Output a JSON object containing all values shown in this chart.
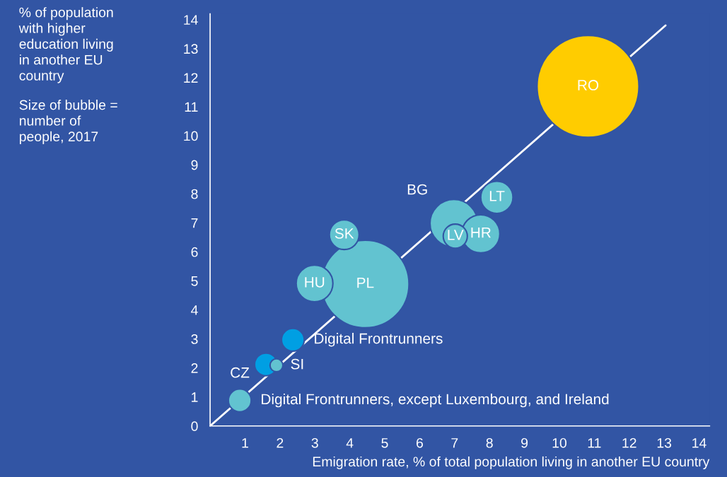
{
  "chart_data": {
    "type": "bubble",
    "xlabel": "Emigration rate, % of total population living in another EU country",
    "xlim": [
      0,
      14.3
    ],
    "ylim": [
      0,
      14.2
    ],
    "xticks": [
      1,
      2,
      3,
      4,
      5,
      6,
      7,
      8,
      9,
      10,
      11,
      12,
      13,
      14
    ],
    "yticks": [
      0,
      1,
      2,
      3,
      4,
      5,
      6,
      7,
      8,
      9,
      10,
      11,
      12,
      13,
      14
    ],
    "grid": false,
    "legend": false,
    "series": [
      {
        "type": "line",
        "color": "#ffffff",
        "x": [
          0,
          13.04
        ],
        "values": [
          0,
          13.8
        ]
      },
      {
        "x": [
          10.82,
          4.44,
          2.99,
          3.84,
          6.98,
          7.75,
          7.02,
          8.21,
          2.37,
          1.6,
          1.9,
          0.85
        ],
        "values": [
          11.7,
          4.89,
          4.91,
          6.59,
          6.98,
          6.62,
          6.54,
          7.88,
          2.97,
          2.12,
          2.09,
          0.88
        ],
        "sizes": [
          1,
          0.74,
          0.13,
          0.085,
          0.22,
          0.14,
          0.056,
          0.1,
          0.05,
          0.05,
          0.016,
          0.05
        ],
        "colors": [
          "#ffcc00",
          "#62c3d0",
          "#62c3d0",
          "#62c3d0",
          "#62c3d0",
          "#62c3d0",
          "#62c3d0",
          "#62c3d0",
          "#009fe3",
          "#009fe3",
          "#62c3d0",
          "#62c3d0"
        ]
      }
    ],
    "annotations": [
      "% of population\nwith higher\neducation living\nin another EU\ncountry",
      "Size of bubble =\nnumber of\npeople, 2017",
      {
        "text": "RO",
        "x": 10.82,
        "y": 11.7
      },
      {
        "text": "PL",
        "x": 4.44,
        "y": 4.89
      },
      {
        "text": "HU",
        "x": 2.99,
        "y": 4.91
      },
      {
        "text": "SK",
        "x": 3.84,
        "y": 6.59
      },
      {
        "text": "BG",
        "x": 6.98,
        "y": 6.98
      },
      {
        "text": "HR",
        "x": 7.75,
        "y": 6.62
      },
      {
        "text": "LV",
        "x": 7.02,
        "y": 6.54
      },
      {
        "text": "LT",
        "x": 8.21,
        "y": 7.88
      },
      {
        "text": "SI",
        "x": 1.9,
        "y": 2.09
      },
      {
        "text": "Digital Frontrunners, except Luxembourg, and Ireland",
        "x": 0.85,
        "y": 0.88
      },
      {
        "text": "CZ",
        "x": 0.85,
        "y": 0.88
      },
      {
        "text": "Digital Frontrunners",
        "x": 2.37,
        "y": 2.97
      }
    ]
  }
}
